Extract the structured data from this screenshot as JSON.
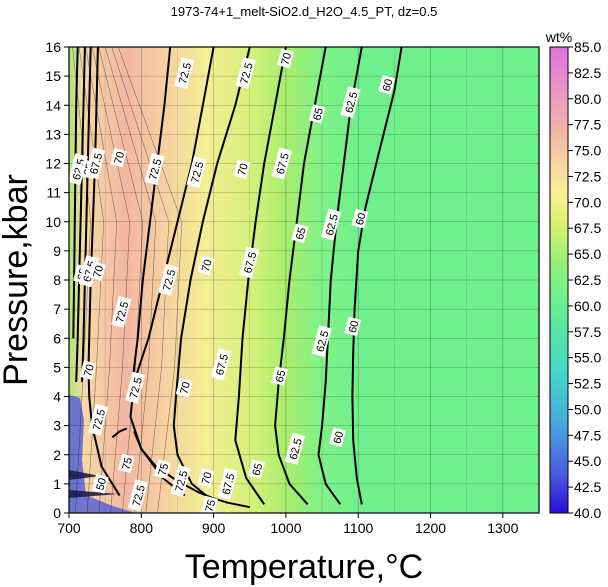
{
  "chart_data": {
    "type": "heatmap",
    "title": "1973-74+1_melt-SiO2.d_H2O_4.5_PT, dz=0.5",
    "xlabel": "Temperature,°C",
    "ylabel": "Pressure,kbar",
    "xlim": [
      700,
      1350
    ],
    "ylim": [
      0,
      16
    ],
    "x_ticks": [
      "700",
      "800",
      "900",
      "1000",
      "1100",
      "1200",
      "1300"
    ],
    "y_ticks": [
      "0",
      "1",
      "2",
      "3",
      "4",
      "5",
      "6",
      "7",
      "8",
      "9",
      "10",
      "11",
      "12",
      "13",
      "14",
      "15",
      "16"
    ],
    "grid": true,
    "colorbar": {
      "label": "wt%",
      "min": 40,
      "max": 85,
      "ticks": [
        "40.0",
        "42.5",
        "45.0",
        "47.5",
        "50.0",
        "52.5",
        "55.0",
        "57.5",
        "60.0",
        "62.5",
        "65.0",
        "67.5",
        "70.0",
        "72.5",
        "75.0",
        "77.5",
        "80.0",
        "82.5",
        "85.0"
      ],
      "colors": [
        "#4020d0",
        "#5a6ad8",
        "#5fa8d8",
        "#4fc8c0",
        "#4ad8a0",
        "#60e890",
        "#70f088",
        "#96f078",
        "#c8f070",
        "#e8f090",
        "#f8e0a0",
        "#f8c8a0",
        "#f0a8b0",
        "#e888c8",
        "#e070d8"
      ]
    },
    "contours": [
      {
        "level": "60",
        "x": [
          1160,
          1150,
          1130,
          1110,
          1100,
          1095,
          1093,
          1092,
          1093,
          1098,
          1105
        ],
        "y": [
          16,
          14.5,
          12.5,
          10.5,
          9,
          7,
          5.5,
          4,
          2.5,
          1.2,
          0.3
        ]
      },
      {
        "level": "62.5",
        "x": [
          1105,
          1090,
          1080,
          1070,
          1062,
          1058,
          1055,
          1050,
          1045,
          1055,
          1075
        ],
        "y": [
          16,
          14,
          12,
          10,
          8,
          6,
          4.5,
          3,
          2,
          1,
          0.3
        ]
      },
      {
        "level": "65",
        "x": [
          1055,
          1040,
          1025,
          1015,
          1005,
          997,
          990,
          985,
          990,
          1005,
          1030
        ],
        "y": [
          16,
          14,
          12,
          10,
          8,
          6,
          4.5,
          3,
          2,
          1,
          0.3
        ]
      },
      {
        "level": "67.5",
        "x": [
          1000,
          985,
          970,
          958,
          948,
          940,
          935,
          930,
          945,
          970
        ],
        "y": [
          16,
          14,
          12,
          10,
          8,
          6,
          4,
          2.5,
          1.2,
          0.3
        ]
      },
      {
        "level": "70",
        "x": [
          950,
          930,
          905,
          885,
          868,
          855,
          848,
          845,
          850,
          870,
          900
        ],
        "y": [
          16,
          14,
          12,
          10,
          8,
          6,
          4,
          3,
          2,
          1,
          0.4
        ]
      },
      {
        "level": "72.5",
        "x": [
          900,
          885,
          870,
          850,
          830,
          810,
          790,
          785,
          800,
          830,
          860
        ],
        "y": [
          16,
          14,
          12,
          10,
          8,
          6,
          4.5,
          3.3,
          2.2,
          1.2,
          0.6
        ]
      },
      {
        "level": "72.5",
        "x": [
          840,
          832,
          822,
          812,
          802,
          795,
          790,
          788
        ],
        "y": [
          16,
          14,
          12,
          10,
          8,
          6,
          5,
          4.5
        ]
      },
      {
        "level": "70",
        "x": [
          740,
          738,
          736,
          733,
          730,
          728,
          727,
          728,
          732,
          745,
          770
        ],
        "y": [
          16,
          14,
          12,
          10,
          8,
          6,
          5,
          4,
          3,
          1.6,
          0.6
        ]
      },
      {
        "level": "67.5",
        "x": [
          730,
          728,
          726,
          724,
          722,
          720,
          718
        ],
        "y": [
          16,
          14,
          12,
          10,
          8,
          6,
          4.5
        ]
      },
      {
        "level": "65",
        "x": [
          722,
          720,
          718,
          716,
          714,
          712,
          710
        ],
        "y": [
          16,
          14,
          12,
          10,
          8,
          6,
          4.5
        ]
      },
      {
        "level": "62.5",
        "x": [
          712,
          710,
          709,
          708,
          707,
          706
        ],
        "y": [
          16,
          14,
          12,
          10,
          8,
          6
        ]
      },
      {
        "level": "75",
        "x": [
          790,
          800,
          820,
          850,
          880,
          900,
          920,
          940,
          950
        ],
        "y": [
          2.8,
          2.2,
          1.6,
          1.1,
          0.7,
          0.5,
          0.35,
          0.25,
          0.2
        ]
      },
      {
        "level": "75",
        "x": [
          760,
          770,
          780
        ],
        "y": [
          2.6,
          2.8,
          2.9
        ]
      }
    ],
    "labels": [
      {
        "text": "72.5",
        "x": 860,
        "y": 15.1
      },
      {
        "text": "72.5",
        "x": 945,
        "y": 15.1
      },
      {
        "text": "70",
        "x": 1000,
        "y": 15.6
      },
      {
        "text": "65",
        "x": 1044,
        "y": 13.7
      },
      {
        "text": "62.5",
        "x": 1090,
        "y": 14.1
      },
      {
        "text": "60",
        "x": 1140,
        "y": 14.7
      },
      {
        "text": "62.5",
        "x": 713,
        "y": 11.8
      },
      {
        "text": "65",
        "x": 727,
        "y": 11.8
      },
      {
        "text": "67.5",
        "x": 737,
        "y": 12.0
      },
      {
        "text": "70",
        "x": 769,
        "y": 12.2
      },
      {
        "text": "72.5",
        "x": 819,
        "y": 11.8
      },
      {
        "text": "72.5",
        "x": 877,
        "y": 11.7
      },
      {
        "text": "70",
        "x": 940,
        "y": 11.8
      },
      {
        "text": "67.5",
        "x": 995,
        "y": 12.0
      },
      {
        "text": "60",
        "x": 1103,
        "y": 10.1
      },
      {
        "text": "62.5",
        "x": 1063,
        "y": 9.9
      },
      {
        "text": "65",
        "x": 1020,
        "y": 9.6
      },
      {
        "text": "70",
        "x": 890,
        "y": 8.5
      },
      {
        "text": "67.5",
        "x": 950,
        "y": 8.6
      },
      {
        "text": "72.5",
        "x": 838,
        "y": 8.0
      },
      {
        "text": "65",
        "x": 718,
        "y": 8.2
      },
      {
        "text": "67.5",
        "x": 728,
        "y": 8.3
      },
      {
        "text": "70",
        "x": 740,
        "y": 8.3
      },
      {
        "text": "72.5",
        "x": 773,
        "y": 6.9
      },
      {
        "text": "60",
        "x": 1093,
        "y": 6.4
      },
      {
        "text": "62.5",
        "x": 1050,
        "y": 5.9
      },
      {
        "text": "65",
        "x": 992,
        "y": 4.7
      },
      {
        "text": "67.5",
        "x": 911,
        "y": 5.1
      },
      {
        "text": "70",
        "x": 860,
        "y": 4.3
      },
      {
        "text": "72.5",
        "x": 792,
        "y": 4.3
      },
      {
        "text": "70",
        "x": 727,
        "y": 4.9
      },
      {
        "text": "72.5",
        "x": 741,
        "y": 3.2
      },
      {
        "text": "60",
        "x": 1072,
        "y": 2.6
      },
      {
        "text": "62.5",
        "x": 1013,
        "y": 2.2
      },
      {
        "text": "65",
        "x": 960,
        "y": 1.5
      },
      {
        "text": "67.5",
        "x": 920,
        "y": 1.0
      },
      {
        "text": "70",
        "x": 890,
        "y": 1.2
      },
      {
        "text": "72.5",
        "x": 855,
        "y": 1.1
      },
      {
        "text": "75",
        "x": 780,
        "y": 1.7
      },
      {
        "text": "75",
        "x": 830,
        "y": 1.5
      },
      {
        "text": "72.5",
        "x": 796,
        "y": 0.6
      },
      {
        "text": "75",
        "x": 895,
        "y": 0.25
      },
      {
        "text": "50",
        "x": 744,
        "y": 1.0
      }
    ]
  }
}
